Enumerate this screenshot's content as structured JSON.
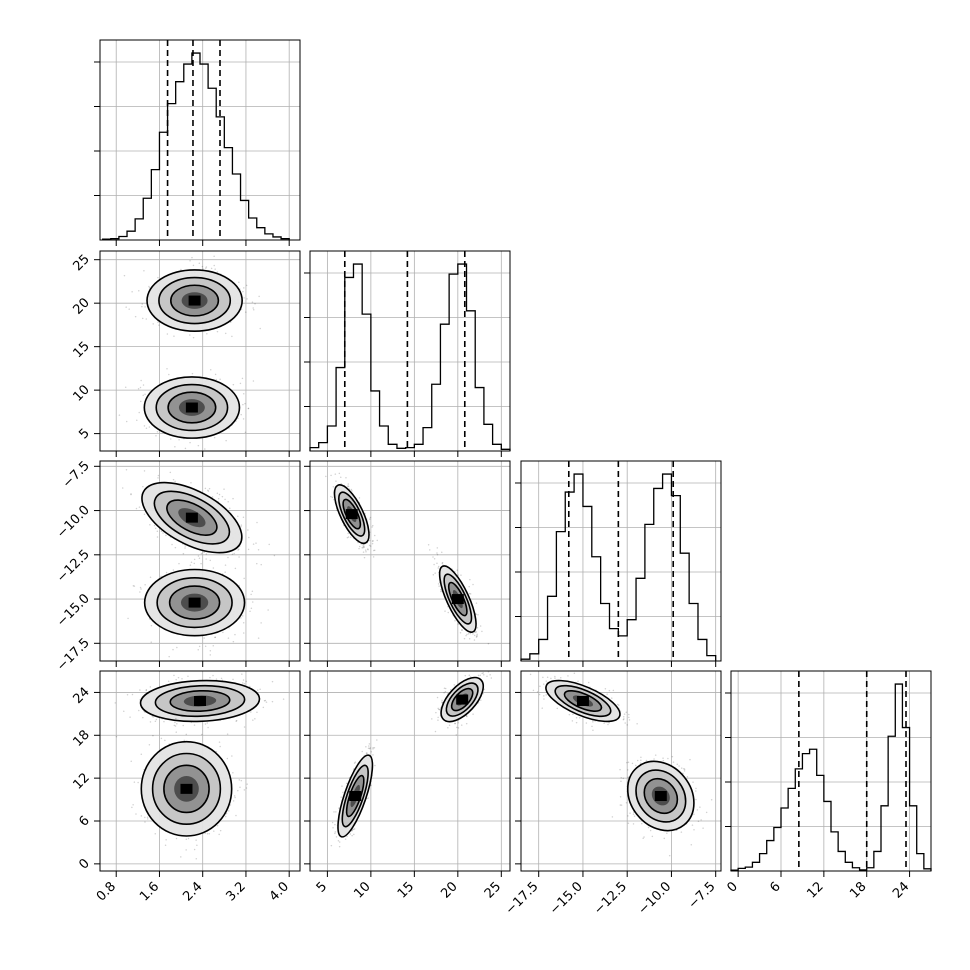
{
  "chart_data": {
    "type": "corner",
    "grid": true,
    "n_params": 4,
    "params": [
      {
        "range": [
          0.5,
          4.2
        ],
        "ticks": [
          0.8,
          1.6,
          2.4,
          3.2,
          4.0
        ],
        "tick_labels": [
          "0.8",
          "1.6",
          "2.4",
          "3.2",
          "4.0"
        ],
        "quantiles": [
          1.75,
          2.22,
          2.72
        ]
      },
      {
        "range": [
          3.0,
          26.0
        ],
        "ticks": [
          5,
          10,
          15,
          20,
          25
        ],
        "tick_labels": [
          "5",
          "10",
          "15",
          "20",
          "25"
        ],
        "quantiles": [
          7.0,
          14.2,
          20.8
        ]
      },
      {
        "range": [
          -18.5,
          -7.2
        ],
        "ticks": [
          -17.5,
          -15.0,
          -12.5,
          -10.0,
          -7.5
        ],
        "tick_labels": [
          "−17.5",
          "−15.0",
          "−12.5",
          "−10.0",
          "−7.5"
        ],
        "quantiles": [
          -15.8,
          -13.0,
          -9.9
        ]
      },
      {
        "range": [
          -1.0,
          27.0
        ],
        "ticks": [
          0,
          6,
          12,
          18,
          24
        ],
        "tick_labels": [
          "0",
          "6",
          "12",
          "18",
          "24"
        ],
        "quantiles": [
          8.5,
          18.0,
          23.5
        ]
      }
    ],
    "histograms": [
      {
        "param": 0,
        "bin_edges": [
          0.55,
          0.7,
          0.85,
          1.0,
          1.15,
          1.3,
          1.45,
          1.6,
          1.75,
          1.9,
          2.05,
          2.2,
          2.35,
          2.5,
          2.65,
          2.8,
          2.95,
          3.1,
          3.25,
          3.4,
          3.55,
          3.7,
          3.85,
          4.0
        ],
        "counts": [
          2,
          3,
          8,
          20,
          48,
          95,
          160,
          245,
          310,
          360,
          400,
          425,
          400,
          345,
          280,
          210,
          150,
          90,
          50,
          28,
          14,
          7,
          3
        ]
      },
      {
        "param": 1,
        "bin_edges": [
          3.0,
          4.0,
          5.0,
          6.0,
          7.0,
          8.0,
          9.0,
          10.0,
          11.0,
          12.0,
          13.0,
          14.0,
          15.0,
          16.0,
          17.0,
          18.0,
          19.0,
          20.0,
          21.0,
          22.0,
          23.0,
          24.0,
          25.0,
          26.0
        ],
        "counts": [
          10,
          25,
          75,
          250,
          520,
          560,
          410,
          180,
          75,
          20,
          8,
          10,
          20,
          70,
          200,
          380,
          530,
          560,
          420,
          190,
          80,
          20,
          5
        ]
      },
      {
        "param": 2,
        "bin_edges": [
          -18.5,
          -18.0,
          -17.5,
          -17.0,
          -16.5,
          -16.0,
          -15.5,
          -15.0,
          -14.5,
          -14.0,
          -13.5,
          -13.0,
          -12.5,
          -12.0,
          -11.5,
          -11.0,
          -10.5,
          -10.0,
          -9.5,
          -9.0,
          -8.5,
          -8.0,
          -7.5
        ],
        "counts": [
          5,
          20,
          60,
          180,
          360,
          470,
          520,
          430,
          290,
          160,
          90,
          70,
          115,
          230,
          380,
          480,
          520,
          460,
          300,
          160,
          60,
          15
        ]
      },
      {
        "param": 3,
        "bin_edges": [
          -1,
          0,
          1,
          2,
          3,
          4,
          5,
          6,
          7,
          8,
          9,
          10,
          11,
          12,
          13,
          14,
          15,
          16,
          17,
          18,
          19,
          20,
          21,
          22,
          23,
          24,
          25,
          26,
          27
        ],
        "counts": [
          4,
          12,
          18,
          40,
          80,
          140,
          200,
          290,
          380,
          470,
          540,
          560,
          440,
          320,
          180,
          90,
          40,
          15,
          5,
          15,
          90,
          300,
          620,
          860,
          660,
          300,
          80,
          10
        ]
      }
    ],
    "pairs_2d": [
      {
        "x_param": 0,
        "y_param": 1,
        "modes": [
          {
            "center": [
              2.25,
              20.3
            ],
            "sx": 0.4,
            "sy": 1.6,
            "rho": 0.0
          },
          {
            "center": [
              2.2,
              8.0
            ],
            "sx": 0.4,
            "sy": 1.6,
            "rho": 0.0
          }
        ]
      },
      {
        "x_param": 0,
        "y_param": 2,
        "modes": [
          {
            "center": [
              2.2,
              -10.4
            ],
            "sx": 0.42,
            "sy": 0.9,
            "rho": -0.55
          },
          {
            "center": [
              2.25,
              -15.2
            ],
            "sx": 0.42,
            "sy": 0.85,
            "rho": 0.0
          }
        ]
      },
      {
        "x_param": 0,
        "y_param": 3,
        "modes": [
          {
            "center": [
              2.35,
              22.8
            ],
            "sx": 0.5,
            "sy": 1.3,
            "rho": 0.1
          },
          {
            "center": [
              2.1,
              10.5
            ],
            "sx": 0.38,
            "sy": 3.0,
            "rho": 0.0
          }
        ]
      },
      {
        "x_param": 1,
        "y_param": 2,
        "modes": [
          {
            "center": [
              7.8,
              -10.2
            ],
            "sx": 0.9,
            "sy": 0.75,
            "rho": -0.7
          },
          {
            "center": [
              20.0,
              -15.0
            ],
            "sx": 0.95,
            "sy": 0.85,
            "rho": -0.75
          }
        ]
      },
      {
        "x_param": 1,
        "y_param": 3,
        "modes": [
          {
            "center": [
              20.5,
              23.0
            ],
            "sx": 1.1,
            "sy": 1.4,
            "rho": 0.6
          },
          {
            "center": [
              8.2,
              9.5
            ],
            "sx": 0.9,
            "sy": 2.6,
            "rho": 0.75
          }
        ]
      },
      {
        "x_param": 2,
        "y_param": 3,
        "modes": [
          {
            "center": [
              -15.0,
              22.8
            ],
            "sx": 0.95,
            "sy": 1.3,
            "rho": -0.65
          },
          {
            "center": [
              -10.6,
              9.5
            ],
            "sx": 0.85,
            "sy": 2.2,
            "rho": -0.2
          }
        ]
      }
    ]
  }
}
